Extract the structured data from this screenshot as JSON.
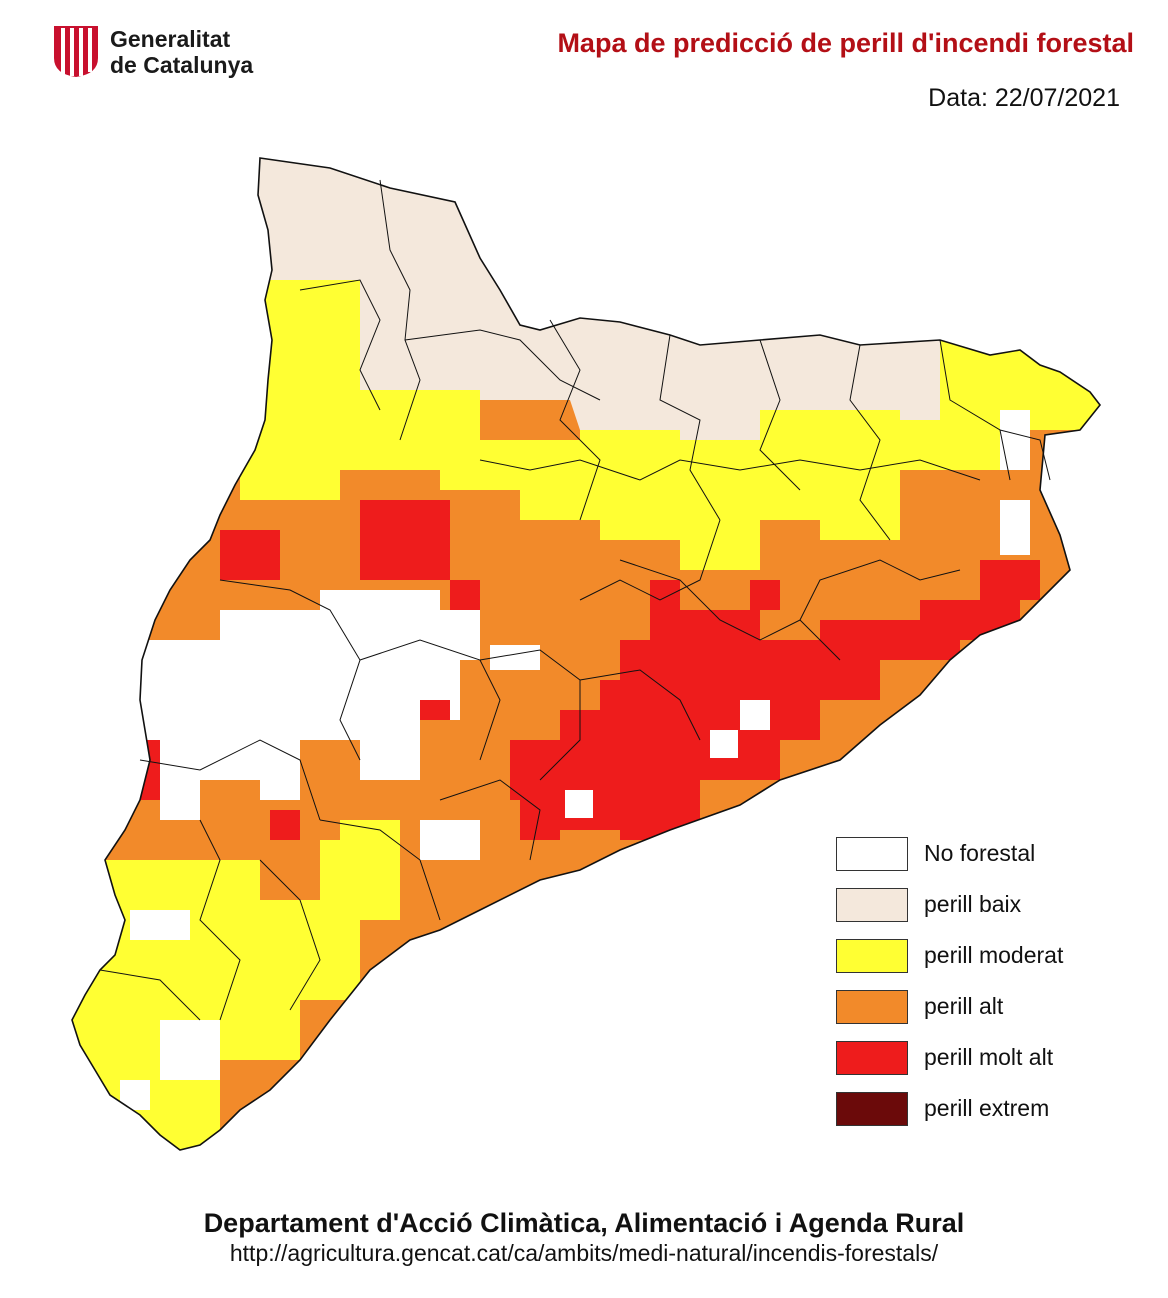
{
  "header": {
    "org_line1": "Generalitat",
    "org_line2": "de Catalunya",
    "title": "Mapa de predicció de perill d'incendi forestal",
    "date": "Data: 22/07/2021"
  },
  "legend": [
    {
      "label": "No forestal",
      "color": "#ffffff"
    },
    {
      "label": "perill baix",
      "color": "#f4e8dc"
    },
    {
      "label": "perill moderat",
      "color": "#ffff33"
    },
    {
      "label": "perill alt",
      "color": "#f28a2a"
    },
    {
      "label": "perill molt alt",
      "color": "#ee1c1c"
    },
    {
      "label": "perill extrem",
      "color": "#6b0a0a"
    }
  ],
  "footer": {
    "department": "Departament d'Acció Climàtica, Alimentació i Agenda Rural",
    "url": "http://agricultura.gencat.cat/ca/ambits/medi-natural/incendis-forestals/"
  }
}
